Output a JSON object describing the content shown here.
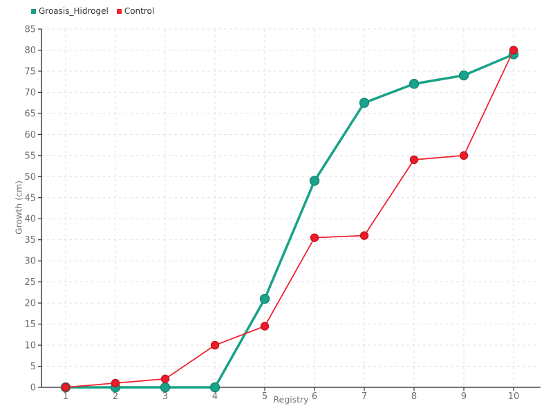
{
  "chart_data": {
    "type": "line",
    "x": [
      1,
      2,
      3,
      4,
      5,
      6,
      7,
      8,
      9,
      10
    ],
    "series": [
      {
        "name": "Groasis_Hidrogel",
        "values": [
          0,
          0,
          0,
          0,
          21,
          49,
          67.5,
          72,
          74,
          79
        ],
        "line_color": "#17a287",
        "marker_fill": "#1ba28a",
        "marker_stroke": "#0d8a6f"
      },
      {
        "name": "Control",
        "values": [
          0,
          1,
          2,
          10,
          14.5,
          35.5,
          36,
          54,
          55,
          80
        ],
        "line_color": "#f0232f",
        "marker_fill": "#ec1c2b",
        "marker_stroke": "#c6101f"
      }
    ],
    "title": "",
    "xlabel": "Registry",
    "ylabel": "Growth (cm)",
    "ylim": [
      0,
      85
    ],
    "ytick_step": 5,
    "xticks": [
      "1",
      "2",
      "3",
      "4",
      "5",
      "6",
      "7",
      "8",
      "9",
      "10"
    ],
    "yticks": [
      "0",
      "5",
      "10",
      "15",
      "20",
      "25",
      "30",
      "35",
      "40",
      "45",
      "50",
      "55",
      "60",
      "65",
      "70",
      "75",
      "80",
      "85"
    ],
    "grid": true,
    "grid_style": "dashed",
    "legend_position": "top-left",
    "background": "#ffffff",
    "axis_color": "#222222",
    "tick_label_color": "#6e6e6e"
  }
}
